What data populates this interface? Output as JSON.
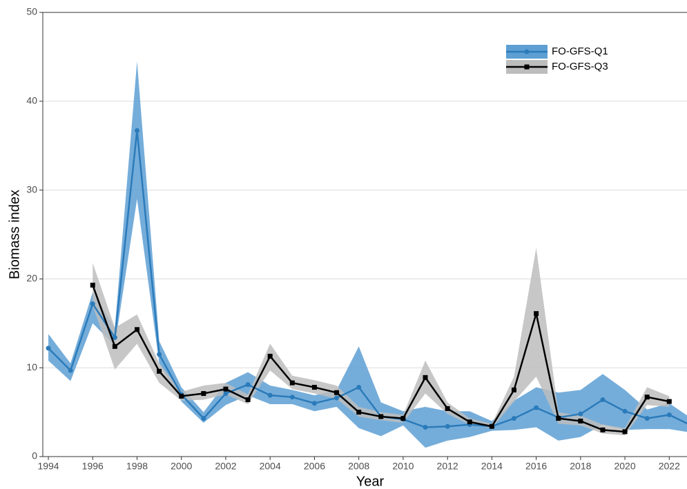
{
  "chart_data": {
    "type": "line",
    "x_label": "Year",
    "y_label": "Biomass index",
    "x": [
      1994,
      1995,
      1996,
      1997,
      1998,
      1999,
      2000,
      2001,
      2002,
      2003,
      2004,
      2005,
      2006,
      2007,
      2008,
      2009,
      2010,
      2011,
      2012,
      2013,
      2014,
      2015,
      2016,
      2017,
      2018,
      2019,
      2020,
      2021,
      2022,
      2023
    ],
    "xlim": [
      1993.75,
      2022.8
    ],
    "xticks": [
      1994,
      1996,
      1998,
      2000,
      2002,
      2004,
      2006,
      2008,
      2010,
      2012,
      2014,
      2016,
      2018,
      2020,
      2022
    ],
    "ylim": [
      0,
      50
    ],
    "yticks": [
      0,
      10,
      20,
      30,
      40,
      50
    ],
    "grid": true,
    "legend": "top-right",
    "series": [
      {
        "name": "FO-GFS-Q1",
        "color": "#2b7bba",
        "band_color": "#5d9fd3",
        "marker": "circle",
        "values": [
          12.2,
          9.7,
          17.2,
          13.4,
          36.7,
          11.5,
          7.0,
          4.3,
          7.1,
          8.1,
          6.9,
          6.7,
          6.0,
          6.6,
          7.8,
          4.5,
          4.2,
          3.3,
          3.4,
          3.6,
          3.4,
          4.3,
          5.5,
          4.4,
          4.8,
          6.4,
          5.1,
          4.3,
          4.7,
          3.5
        ],
        "lower": [
          10.8,
          8.5,
          15.0,
          12.5,
          29.0,
          10.5,
          6.2,
          3.8,
          5.8,
          6.9,
          5.9,
          5.9,
          5.1,
          5.6,
          3.2,
          2.3,
          3.5,
          1.0,
          1.8,
          2.2,
          2.9,
          3.0,
          3.3,
          1.8,
          2.2,
          3.6,
          3.0,
          3.1,
          3.1,
          2.7
        ],
        "upper": [
          13.8,
          10.5,
          18.5,
          14.5,
          44.5,
          13.0,
          7.8,
          5.0,
          8.3,
          9.5,
          8.0,
          7.5,
          6.9,
          7.5,
          12.4,
          6.1,
          5.1,
          5.6,
          5.1,
          5.1,
          4.0,
          6.3,
          7.8,
          7.2,
          7.5,
          9.3,
          7.5,
          5.3,
          6.0,
          4.3
        ]
      },
      {
        "name": "FO-GFS-Q3",
        "color": "#000000",
        "band_color": "#bdbdbd",
        "marker": "square",
        "values": [
          null,
          null,
          19.3,
          12.4,
          14.3,
          9.6,
          6.8,
          7.1,
          7.6,
          6.4,
          11.3,
          8.3,
          7.8,
          7.2,
          5.0,
          4.5,
          4.3,
          8.9,
          5.4,
          3.9,
          3.4,
          7.5,
          16.1,
          4.3,
          4.0,
          3.0,
          2.8,
          6.7,
          6.2,
          null
        ],
        "lower": [
          null,
          null,
          17.0,
          9.8,
          12.7,
          8.3,
          6.3,
          6.4,
          7.0,
          5.9,
          9.7,
          7.6,
          7.1,
          6.5,
          4.5,
          4.1,
          3.8,
          7.1,
          4.8,
          3.6,
          3.2,
          6.2,
          9.0,
          3.7,
          3.5,
          2.6,
          2.4,
          5.8,
          5.6,
          null
        ],
        "upper": [
          null,
          null,
          21.8,
          14.5,
          16.0,
          10.5,
          7.3,
          8.0,
          8.3,
          7.0,
          12.7,
          9.1,
          8.6,
          8.0,
          5.6,
          5.0,
          4.7,
          10.8,
          6.1,
          4.3,
          3.7,
          9.0,
          23.5,
          5.0,
          4.6,
          3.6,
          3.2,
          7.8,
          6.8,
          null
        ]
      }
    ]
  }
}
